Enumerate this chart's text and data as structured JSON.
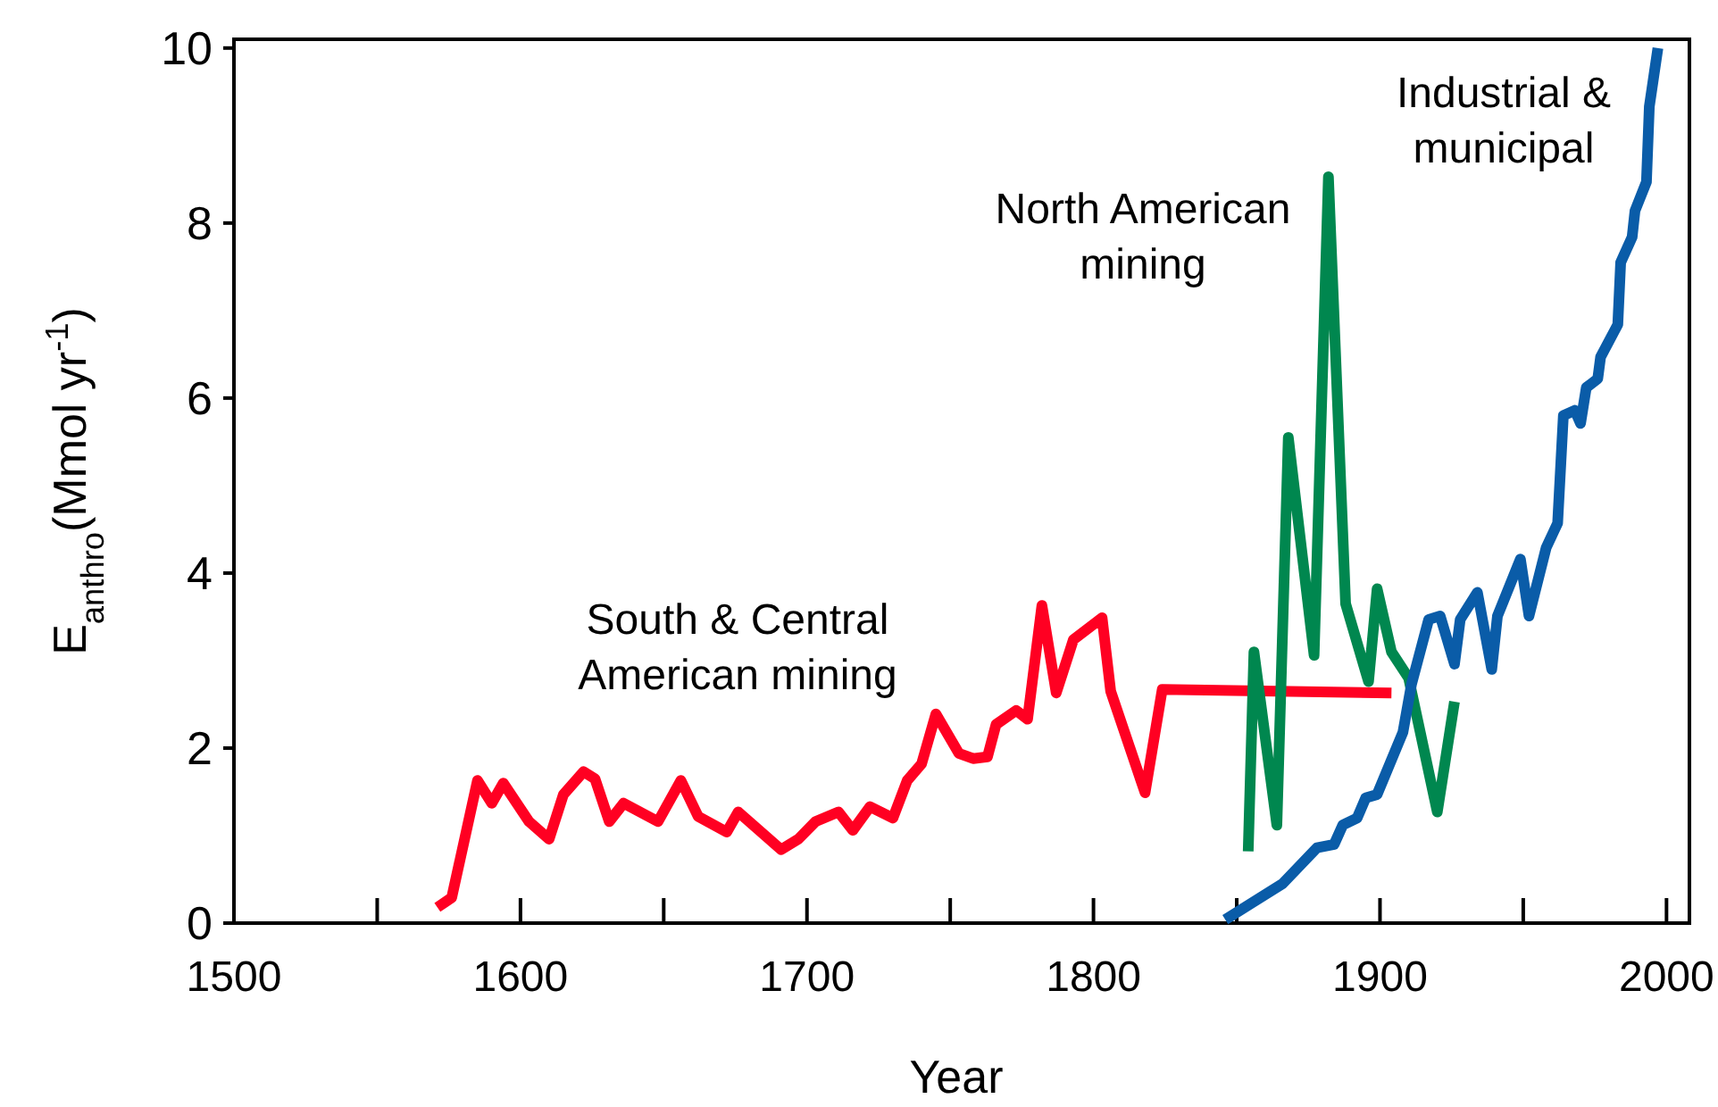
{
  "chart_data": {
    "type": "line",
    "xlabel": "Year",
    "ylabel": "E$_{anthro}$(Mmol yr$^{-1}$)",
    "xlim": [
      1500,
      2008
    ],
    "ylim": [
      0,
      10.1
    ],
    "xticks": [
      1500,
      {
        "value": 1550,
        "label": null
      },
      1600,
      {
        "value": 1650,
        "label": null
      },
      1700,
      {
        "value": 1750,
        "label": null
      },
      1800,
      {
        "value": 1850,
        "label": null
      },
      1900,
      {
        "value": 1950,
        "label": null
      },
      2000
    ],
    "yticks": [
      0,
      2,
      4,
      6,
      8,
      10
    ],
    "grid": false,
    "line_style": "solid",
    "marker": "none",
    "series": [
      {
        "name": "South & Central\nAmerican mining",
        "color": "#ff0022",
        "x": [
          1571,
          1576,
          1585,
          1590,
          1594,
          1603,
          1610,
          1615,
          1622,
          1626,
          1631,
          1636,
          1648,
          1656,
          1662,
          1672,
          1676,
          1691,
          1697,
          1703,
          1711,
          1716,
          1722,
          1730,
          1735,
          1740,
          1745,
          1753,
          1758,
          1763,
          1766,
          1773,
          1777,
          1782,
          1787,
          1793,
          1803,
          1806,
          1818,
          1824,
          1904
        ],
        "values": [
          0.18,
          0.29,
          1.63,
          1.37,
          1.6,
          1.16,
          0.96,
          1.47,
          1.73,
          1.65,
          1.16,
          1.37,
          1.16,
          1.63,
          1.22,
          1.04,
          1.27,
          0.84,
          0.96,
          1.16,
          1.27,
          1.06,
          1.33,
          1.2,
          1.63,
          1.82,
          2.39,
          1.94,
          1.88,
          1.9,
          2.27,
          2.43,
          2.33,
          3.63,
          2.63,
          3.24,
          3.49,
          2.65,
          1.49,
          2.67,
          2.63
        ]
      },
      {
        "name": "North American\nmining",
        "color": "#00874f",
        "x": [
          1854,
          1856,
          1864,
          1868,
          1877,
          1882,
          1888,
          1896,
          1899,
          1904,
          1910,
          1920,
          1926
        ],
        "values": [
          0.82,
          3.1,
          1.12,
          5.55,
          3.06,
          8.53,
          3.65,
          2.76,
          3.82,
          3.1,
          2.8,
          1.27,
          2.53
        ]
      },
      {
        "name": "Industrial &\nmunicipal",
        "color": "#0a5ca8",
        "x": [
          1846,
          1866,
          1878,
          1884,
          1887,
          1892,
          1895,
          1899,
          1908,
          1911,
          1917,
          1921,
          1926,
          1928,
          1934,
          1939,
          1941,
          1949,
          1952,
          1958,
          1962,
          1964,
          1968,
          1970,
          1972,
          1976,
          1977,
          1983,
          1984,
          1988,
          1989,
          1993,
          1994,
          1997
        ],
        "values": [
          0.04,
          0.45,
          0.86,
          0.9,
          1.12,
          1.2,
          1.43,
          1.47,
          2.18,
          2.73,
          3.47,
          3.51,
          2.96,
          3.47,
          3.78,
          2.9,
          3.51,
          4.16,
          3.51,
          4.29,
          4.57,
          5.8,
          5.86,
          5.71,
          6.12,
          6.22,
          6.47,
          6.84,
          7.55,
          7.84,
          8.14,
          8.47,
          9.33,
          10.0
        ]
      }
    ]
  }
}
